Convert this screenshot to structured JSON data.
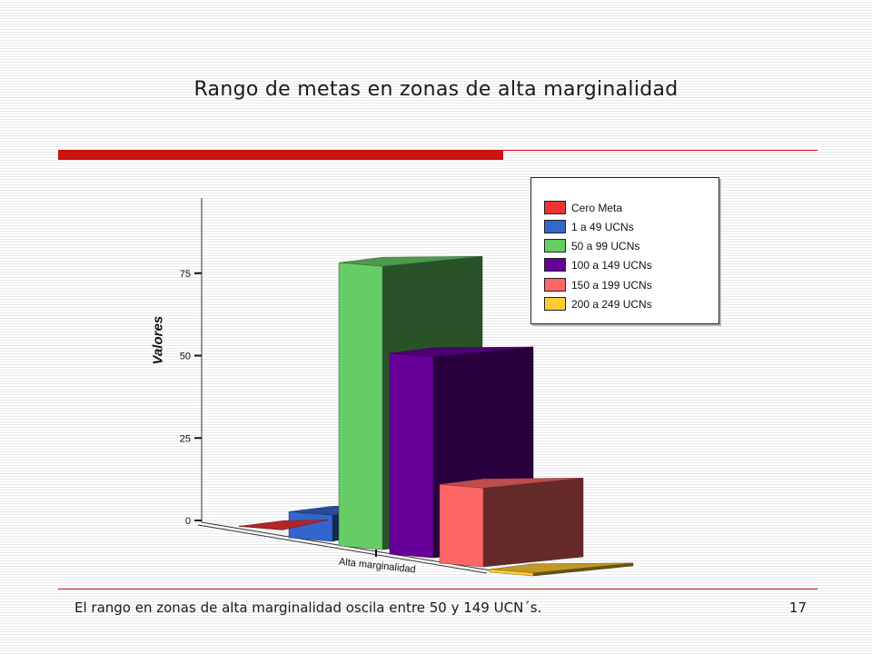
{
  "slide": {
    "title": "Rango de metas en zonas de alta marginalidad",
    "footer": "El rango en zonas de alta marginalidad oscila entre 50 y 149 UCN´s.",
    "page_number": "17"
  },
  "colors": {
    "accent_red": "#cc1111"
  },
  "chart_data": {
    "type": "bar",
    "title": "",
    "xlabel": "",
    "ylabel": "Valores",
    "categories": [
      "Alta marginalidad"
    ],
    "ylim": [
      0,
      100
    ],
    "yticks": [
      "0",
      "25",
      "50",
      "75"
    ],
    "series": [
      {
        "name": "Cero Meta",
        "values": [
          1
        ],
        "color": "#ee3333"
      },
      {
        "name": "1 a 49 UCNs",
        "values": [
          9
        ],
        "color": "#3366cc"
      },
      {
        "name": "50 a 99 UCNs",
        "values": [
          87
        ],
        "color": "#66cc66"
      },
      {
        "name": "100 a 149 UCNs",
        "values": [
          62
        ],
        "color": "#660099"
      },
      {
        "name": "150 a 199 UCNs",
        "values": [
          25
        ],
        "color": "#ff6666"
      },
      {
        "name": "200 a 249 UCNs",
        "values": [
          2
        ],
        "color": "#ffcc33"
      }
    ],
    "legend_position": "top-right",
    "grid": false
  }
}
